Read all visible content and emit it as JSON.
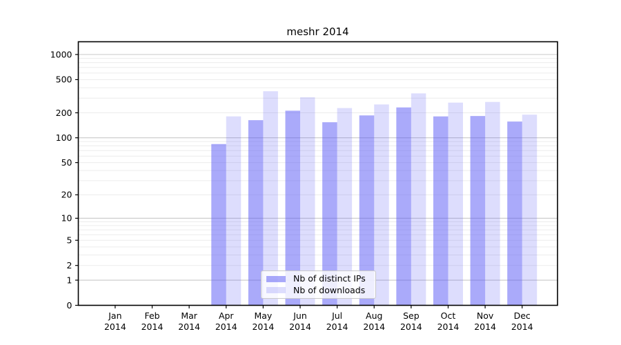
{
  "chart_data": {
    "type": "bar",
    "title": "meshr 2014",
    "categories": [
      "Jan",
      "Feb",
      "Mar",
      "Apr",
      "May",
      "Jun",
      "Jul",
      "Aug",
      "Sep",
      "Oct",
      "Nov",
      "Dec"
    ],
    "category_year": "2014",
    "series": [
      {
        "name": "Nb of distinct IPs",
        "color": "rgba(85,85,245,0.5)",
        "values": [
          0,
          0,
          0,
          84,
          163,
          212,
          154,
          186,
          232,
          181,
          183,
          157
        ]
      },
      {
        "name": "Nb of downloads",
        "color": "rgba(85,85,245,0.2)",
        "values": [
          0,
          0,
          0,
          181,
          363,
          307,
          228,
          252,
          342,
          265,
          270,
          190
        ]
      }
    ],
    "yticks": [
      0,
      1,
      2,
      5,
      10,
      20,
      50,
      100,
      200,
      500,
      1000
    ],
    "yscale": "log1p",
    "ylim": [
      0,
      1380
    ],
    "grid": true,
    "legend_position": "lower center",
    "colors": {
      "major_grid": "#c8c8c8",
      "minor_grid": "#ececec",
      "axis": "#000000",
      "text": "#000000"
    }
  }
}
